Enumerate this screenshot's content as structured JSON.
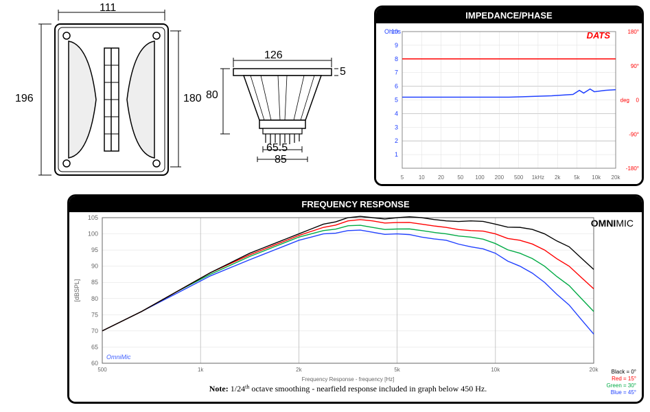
{
  "drawing": {
    "front": {
      "width_label": "111",
      "height_left": "196",
      "height_right": "180",
      "outer_w": 180,
      "outer_h": 220,
      "plate_w": 155,
      "plate_h": 210,
      "horn_w": 100,
      "horn_h": 170,
      "corner_r": 8
    },
    "side": {
      "width_label": "126",
      "height_label": "80",
      "flange_label": "5",
      "base1_label": "65.5",
      "base2_label": "85",
      "plate_w": 150,
      "plate_t": 8,
      "body_h": 80,
      "body_top_w": 130,
      "body_bot_w": 75
    }
  },
  "impedance": {
    "title": "IMPEDANCE/PHASE",
    "brand": "DATS",
    "y_label_left": "Ohms",
    "y_label_right_unit": "deg",
    "y_left_max": 10,
    "y_left_ticks": [
      1,
      2,
      3,
      4,
      5,
      6,
      7,
      8,
      9,
      10
    ],
    "y_right_ticks": [
      "180°",
      "90°",
      "0",
      "-90°",
      "-180°"
    ],
    "x_ticks": [
      "5",
      "10",
      "20",
      "50",
      "100",
      "200",
      "500",
      "1kHz",
      "2k",
      "5k",
      "10k",
      "20k"
    ],
    "imp_color": "#2040ff",
    "phase_color": "#ff0000",
    "impedance_points": [
      [
        0,
        5.2
      ],
      [
        0.1,
        5.2
      ],
      [
        0.2,
        5.2
      ],
      [
        0.3,
        5.2
      ],
      [
        0.4,
        5.2
      ],
      [
        0.5,
        5.2
      ],
      [
        0.6,
        5.25
      ],
      [
        0.7,
        5.3
      ],
      [
        0.75,
        5.35
      ],
      [
        0.8,
        5.4
      ],
      [
        0.83,
        5.7
      ],
      [
        0.85,
        5.5
      ],
      [
        0.88,
        5.8
      ],
      [
        0.9,
        5.6
      ],
      [
        0.95,
        5.7
      ],
      [
        1,
        5.75
      ]
    ],
    "phase_points": [
      [
        0,
        8.0
      ],
      [
        0.5,
        8.0
      ],
      [
        0.8,
        8.0
      ],
      [
        0.9,
        8.0
      ],
      [
        1,
        8.0
      ]
    ]
  },
  "freq_response": {
    "title": "FREQUENCY RESPONSE",
    "brand": "OMNIMIC",
    "y_label": "[dBSPL]",
    "x_label": "Frequency Response - frequency [Hz]",
    "y_ticks": [
      60,
      65,
      70,
      75,
      80,
      85,
      90,
      95,
      100,
      105
    ],
    "x_ticks": [
      "500",
      "1k",
      "2k",
      "5k",
      "10k",
      "20k"
    ],
    "note_prefix": "Note: ",
    "note_text": "1/24",
    "note_suffix": " octave smoothing - nearfield response included in graph below 450 Hz.",
    "watermark": "OmniMic",
    "legend": [
      {
        "label": "Black = 0°",
        "color": "#000000"
      },
      {
        "label": "Red = 15°",
        "color": "#ff0000"
      },
      {
        "label": "Green = 30°",
        "color": "#00aa44"
      },
      {
        "label": "Blue = 45°",
        "color": "#2040ff"
      }
    ],
    "curves": {
      "black": {
        "color": "#000000",
        "pts": [
          [
            0,
            70
          ],
          [
            0.08,
            76
          ],
          [
            0.15,
            82
          ],
          [
            0.22,
            88
          ],
          [
            0.3,
            94
          ],
          [
            0.35,
            97
          ],
          [
            0.4,
            100
          ],
          [
            0.45,
            103
          ],
          [
            0.5,
            105
          ],
          [
            0.55,
            105
          ],
          [
            0.6,
            105
          ],
          [
            0.65,
            105
          ],
          [
            0.7,
            104
          ],
          [
            0.75,
            104
          ],
          [
            0.8,
            103
          ],
          [
            0.85,
            102
          ],
          [
            0.9,
            100
          ],
          [
            0.95,
            96
          ],
          [
            1,
            89
          ]
        ]
      },
      "red": {
        "color": "#ff0000",
        "pts": [
          [
            0,
            70
          ],
          [
            0.08,
            76
          ],
          [
            0.15,
            82
          ],
          [
            0.22,
            88
          ],
          [
            0.3,
            93.5
          ],
          [
            0.35,
            96.5
          ],
          [
            0.4,
            99.5
          ],
          [
            0.45,
            102
          ],
          [
            0.5,
            104
          ],
          [
            0.55,
            104
          ],
          [
            0.6,
            103.5
          ],
          [
            0.65,
            103
          ],
          [
            0.7,
            102
          ],
          [
            0.75,
            101
          ],
          [
            0.8,
            100
          ],
          [
            0.85,
            98
          ],
          [
            0.9,
            95
          ],
          [
            0.95,
            90
          ],
          [
            1,
            83
          ]
        ]
      },
      "green": {
        "color": "#00aa44",
        "pts": [
          [
            0,
            70
          ],
          [
            0.08,
            76
          ],
          [
            0.15,
            82
          ],
          [
            0.22,
            87.5
          ],
          [
            0.3,
            93
          ],
          [
            0.35,
            96
          ],
          [
            0.4,
            99
          ],
          [
            0.45,
            101
          ],
          [
            0.5,
            102.5
          ],
          [
            0.55,
            102
          ],
          [
            0.6,
            101.5
          ],
          [
            0.65,
            101
          ],
          [
            0.7,
            100
          ],
          [
            0.75,
            99
          ],
          [
            0.8,
            97
          ],
          [
            0.85,
            94
          ],
          [
            0.9,
            90
          ],
          [
            0.95,
            84
          ],
          [
            1,
            76
          ]
        ]
      },
      "blue": {
        "color": "#2040ff",
        "pts": [
          [
            0,
            70
          ],
          [
            0.08,
            76
          ],
          [
            0.15,
            81.5
          ],
          [
            0.22,
            87
          ],
          [
            0.3,
            92
          ],
          [
            0.35,
            95
          ],
          [
            0.4,
            98
          ],
          [
            0.45,
            100
          ],
          [
            0.5,
            101
          ],
          [
            0.55,
            100.5
          ],
          [
            0.6,
            100
          ],
          [
            0.65,
            99
          ],
          [
            0.7,
            98
          ],
          [
            0.75,
            96
          ],
          [
            0.8,
            94
          ],
          [
            0.85,
            90
          ],
          [
            0.9,
            85
          ],
          [
            0.95,
            78
          ],
          [
            1,
            69
          ]
        ]
      }
    }
  }
}
